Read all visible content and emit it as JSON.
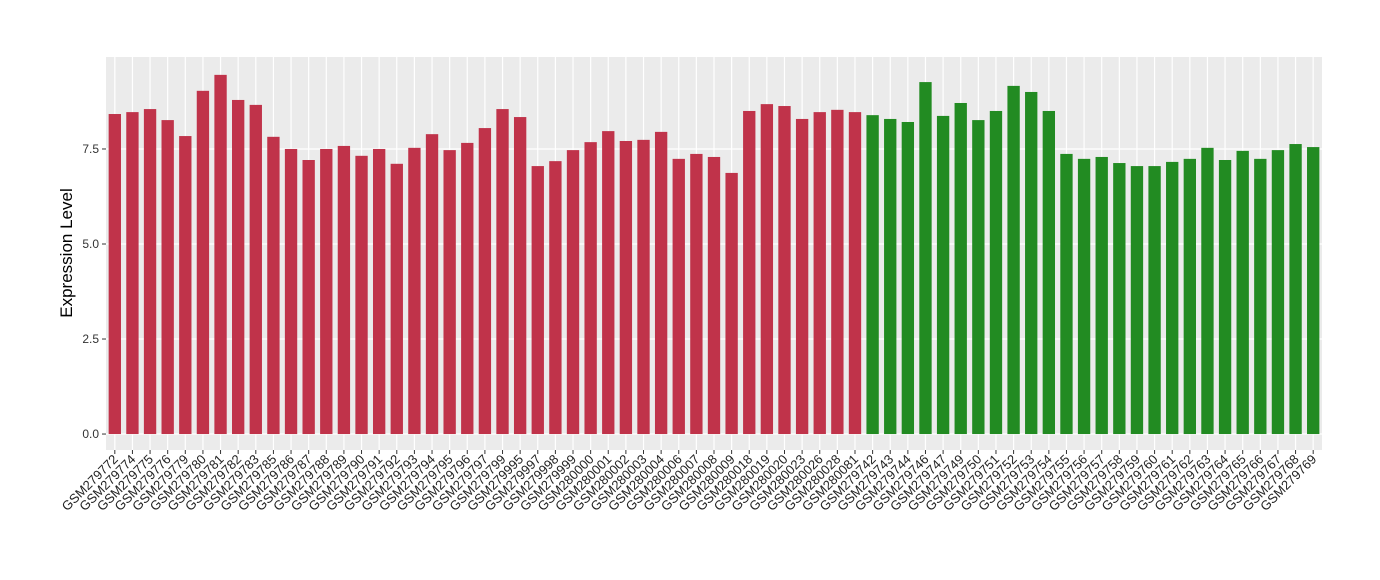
{
  "chart_data": {
    "type": "bar",
    "y_label": "Expression Level",
    "categories": [
      "GSM279772",
      "GSM279774",
      "GSM279775",
      "GSM279776",
      "GSM279779",
      "GSM279780",
      "GSM279781",
      "GSM279782",
      "GSM279783",
      "GSM279785",
      "GSM279786",
      "GSM279787",
      "GSM279788",
      "GSM279789",
      "GSM279790",
      "GSM279791",
      "GSM279792",
      "GSM279793",
      "GSM279794",
      "GSM279795",
      "GSM279796",
      "GSM279797",
      "GSM279799",
      "GSM279995",
      "GSM279997",
      "GSM279998",
      "GSM279999",
      "GSM280000",
      "GSM280001",
      "GSM280002",
      "GSM280003",
      "GSM280004",
      "GSM280006",
      "GSM280007",
      "GSM280008",
      "GSM280009",
      "GSM280018",
      "GSM280019",
      "GSM280020",
      "GSM280023",
      "GSM280026",
      "GSM280028",
      "GSM280081",
      "GSM279742",
      "GSM279743",
      "GSM279744",
      "GSM279746",
      "GSM279747",
      "GSM279749",
      "GSM279750",
      "GSM279751",
      "GSM279752",
      "GSM279753",
      "GSM279754",
      "GSM279755",
      "GSM279756",
      "GSM279757",
      "GSM279758",
      "GSM279759",
      "GSM279760",
      "GSM279761",
      "GSM279762",
      "GSM279763",
      "GSM279764",
      "GSM279765",
      "GSM279766",
      "GSM279767",
      "GSM279768",
      "GSM279769"
    ],
    "values": [
      8.42,
      8.47,
      8.55,
      8.26,
      7.84,
      9.03,
      9.45,
      8.79,
      8.66,
      7.82,
      7.5,
      7.21,
      7.5,
      7.58,
      7.32,
      7.5,
      7.11,
      7.53,
      7.89,
      7.47,
      7.66,
      8.05,
      8.55,
      8.34,
      7.05,
      7.18,
      7.47,
      7.68,
      7.97,
      7.71,
      7.74,
      7.95,
      7.24,
      7.37,
      7.29,
      6.87,
      8.5,
      8.68,
      8.63,
      8.29,
      8.47,
      8.53,
      8.47,
      8.39,
      8.29,
      8.21,
      9.26,
      8.37,
      8.71,
      8.26,
      8.5,
      9.16,
      9.0,
      8.5,
      7.37,
      7.24,
      7.29,
      7.13,
      7.05,
      7.05,
      7.16,
      7.24,
      7.53,
      7.21,
      7.45,
      7.24,
      7.47,
      7.63,
      7.55
    ],
    "colors": [
      "#c0334a",
      "#c0334a",
      "#c0334a",
      "#c0334a",
      "#c0334a",
      "#c0334a",
      "#c0334a",
      "#c0334a",
      "#c0334a",
      "#c0334a",
      "#c0334a",
      "#c0334a",
      "#c0334a",
      "#c0334a",
      "#c0334a",
      "#c0334a",
      "#c0334a",
      "#c0334a",
      "#c0334a",
      "#c0334a",
      "#c0334a",
      "#c0334a",
      "#c0334a",
      "#c0334a",
      "#c0334a",
      "#c0334a",
      "#c0334a",
      "#c0334a",
      "#c0334a",
      "#c0334a",
      "#c0334a",
      "#c0334a",
      "#c0334a",
      "#c0334a",
      "#c0334a",
      "#c0334a",
      "#c0334a",
      "#c0334a",
      "#c0334a",
      "#c0334a",
      "#c0334a",
      "#c0334a",
      "#c0334a",
      "#228b22",
      "#228b22",
      "#228b22",
      "#228b22",
      "#228b22",
      "#228b22",
      "#228b22",
      "#228b22",
      "#228b22",
      "#228b22",
      "#228b22",
      "#228b22",
      "#228b22",
      "#228b22",
      "#228b22",
      "#228b22",
      "#228b22",
      "#228b22",
      "#228b22",
      "#228b22",
      "#228b22",
      "#228b22",
      "#228b22",
      "#228b22",
      "#228b22",
      "#228b22"
    ],
    "ylim": [
      -0.42,
      9.92
    ],
    "yticks": [
      {
        "value": 0,
        "label": "0.0"
      },
      2.5,
      {
        "value": 5,
        "label": "5.0"
      },
      7.5
    ],
    "grid": true
  }
}
